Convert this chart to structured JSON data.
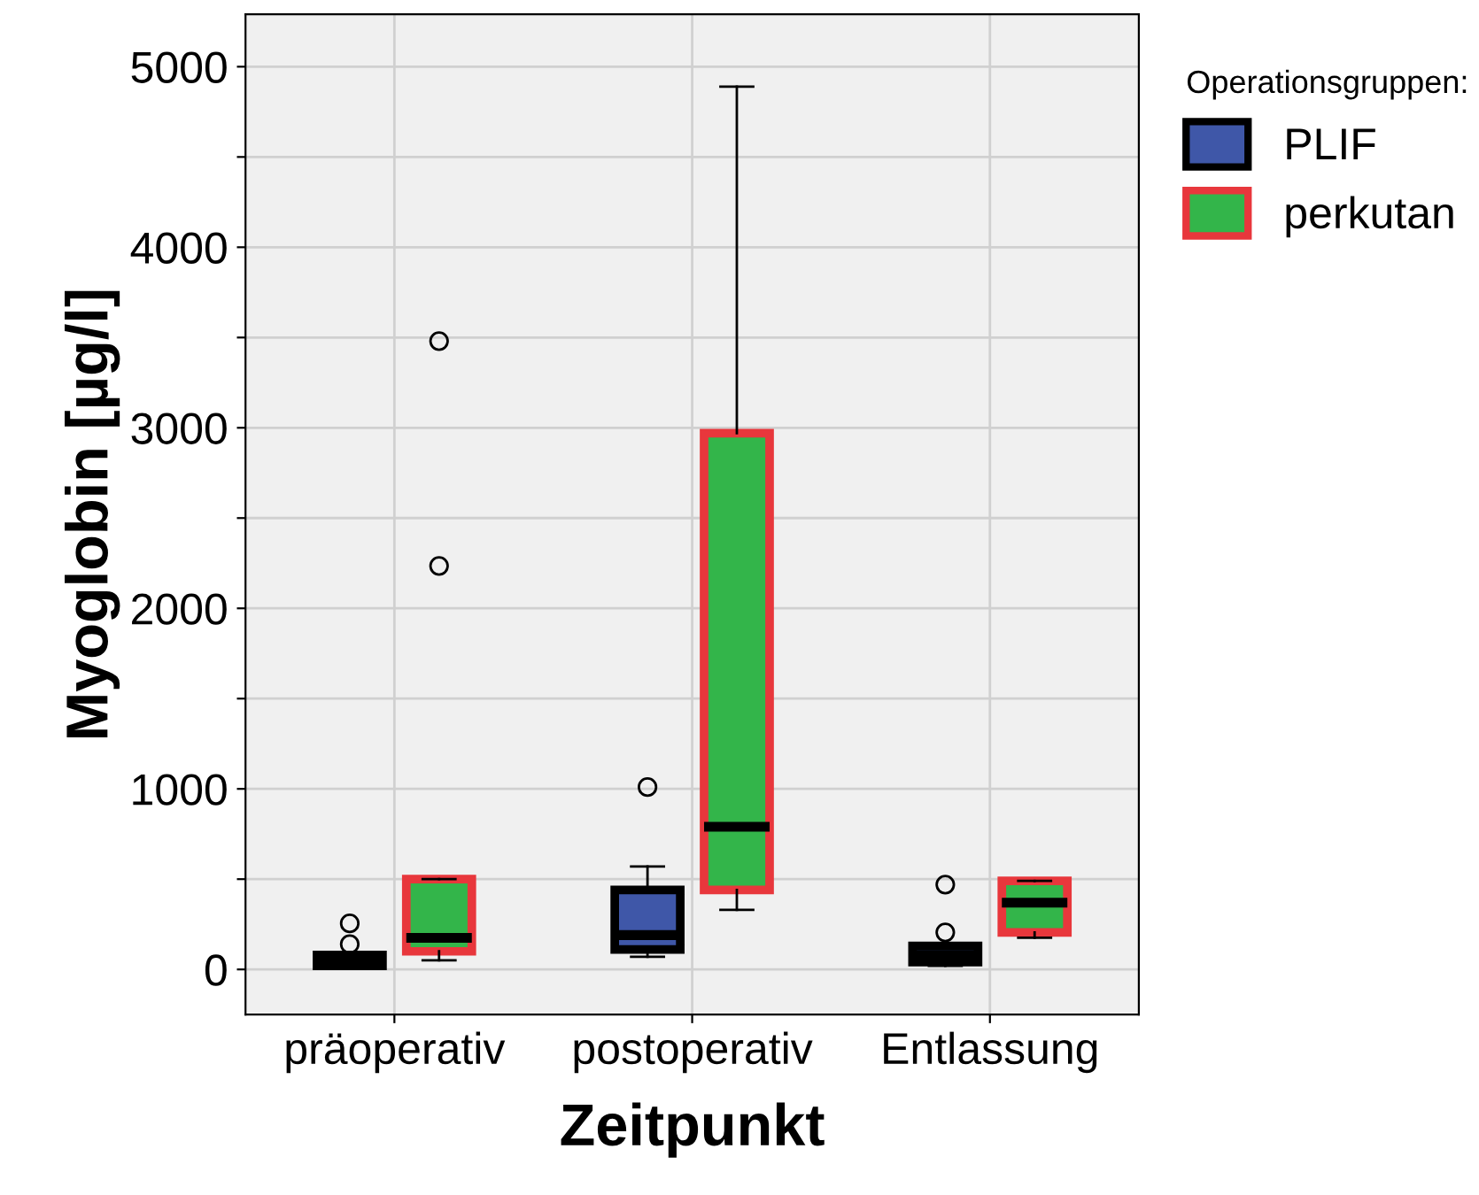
{
  "chart_data": {
    "type": "box",
    "xlabel": "Zeitpunkt",
    "ylabel": "Myoglobin [µg/l]",
    "legend_title": "Operationsgruppen:",
    "categories": [
      "präoperativ",
      "postoperativ",
      "Entlassung"
    ],
    "series": [
      {
        "name": "PLIF",
        "color": "#3f57a8",
        "boxes": [
          {
            "low": 10,
            "q1": 20,
            "median": 50,
            "q3": 80,
            "high": 90,
            "outliers": [
              140,
              255
            ]
          },
          {
            "low": 70,
            "q1": 110,
            "median": 190,
            "q3": 440,
            "high": 570,
            "outliers": [
              1010
            ]
          },
          {
            "low": 20,
            "q1": 40,
            "median": 80,
            "q3": 130,
            "high": 130,
            "outliers": [
              205,
              470
            ]
          }
        ]
      },
      {
        "name": "perkutan",
        "color": "#33b54a",
        "boxes": [
          {
            "low": 50,
            "q1": 100,
            "median": 175,
            "q3": 500,
            "high": 500,
            "outliers": [
              2235,
              3480
            ]
          },
          {
            "low": 330,
            "q1": 440,
            "median": 790,
            "q3": 2970,
            "high": 4890
          },
          {
            "low": 175,
            "q1": 205,
            "median": 370,
            "q3": 490,
            "high": 490
          }
        ]
      }
    ],
    "ylim": [
      -250,
      5290
    ],
    "yticks": [
      0,
      {
        "value": 500,
        "label": null
      },
      1000,
      {
        "value": 1500,
        "label": null
      },
      2000,
      {
        "value": 2500,
        "label": null
      },
      3000,
      {
        "value": 3500,
        "label": null
      },
      4000,
      {
        "value": 4500,
        "label": null
      },
      5000
    ],
    "grid": true,
    "legend": "top right",
    "marker": "circle"
  }
}
